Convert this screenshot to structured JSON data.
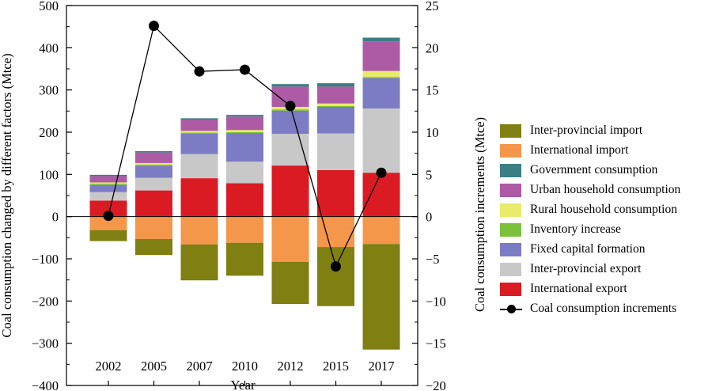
{
  "chart_data": {
    "type": "bar",
    "categories": [
      "2002",
      "2005",
      "2007",
      "2010",
      "2012",
      "2015",
      "2017"
    ],
    "xlabel": "Year",
    "ylabel_left": "Coal consumption changed by different factors (Mtce)",
    "ylabel_right": "Coal consumption increments (Mtce)",
    "ylim_left": [
      -400,
      500
    ],
    "yticks_left": [
      500,
      400,
      300,
      200,
      100,
      0,
      -100,
      -200,
      -300,
      -400
    ],
    "ylim_right": [
      -20,
      25
    ],
    "yticks_right": [
      25,
      20,
      15,
      10,
      5,
      0,
      -5,
      -10,
      -15,
      -20
    ],
    "stack_order_positive": [
      "International export",
      "Inter-provincial export",
      "Fixed capital formation",
      "Inventory increase",
      "Rural household consumption",
      "Urban household consumption",
      "Government consumption"
    ],
    "stack_order_negative": [
      "International import",
      "Inter-provincial import"
    ],
    "series": [
      {
        "name": "Inter-provincial import",
        "color": "#7f7f12",
        "values": [
          -26,
          -38,
          -85,
          -78,
          -100,
          -140,
          -250
        ]
      },
      {
        "name": "International import",
        "color": "#f4974a",
        "values": [
          -32,
          -53,
          -66,
          -62,
          -107,
          -72,
          -65
        ]
      },
      {
        "name": "Government consumption",
        "color": "#3c7f84",
        "values": [
          3,
          3,
          3,
          4,
          6,
          8,
          9
        ]
      },
      {
        "name": "Urban household consumption",
        "color": "#ae5ba6",
        "values": [
          15,
          25,
          27,
          32,
          48,
          40,
          70
        ]
      },
      {
        "name": "Rural household consumption",
        "color": "#e9ec6a",
        "values": [
          3,
          4,
          4,
          5,
          6,
          6,
          14
        ]
      },
      {
        "name": "Inventory increase",
        "color": "#7cc13c",
        "values": [
          3,
          2,
          2,
          2,
          3,
          2,
          3
        ]
      },
      {
        "name": "Fixed capital formation",
        "color": "#7b7cc3",
        "values": [
          17,
          29,
          49,
          68,
          55,
          63,
          72
        ]
      },
      {
        "name": "Inter-provincial export",
        "color": "#c9c8c9",
        "values": [
          20,
          30,
          57,
          51,
          75,
          87,
          152
        ]
      },
      {
        "name": "International export",
        "color": "#db1b23",
        "values": [
          38,
          62,
          91,
          79,
          121,
          110,
          104
        ]
      }
    ],
    "line_series": {
      "name": "Coal consumption increments",
      "axis": "right",
      "color": "#000000",
      "values": [
        0.1,
        22.6,
        17.2,
        17.4,
        13.1,
        -5.9,
        5.2
      ]
    }
  }
}
